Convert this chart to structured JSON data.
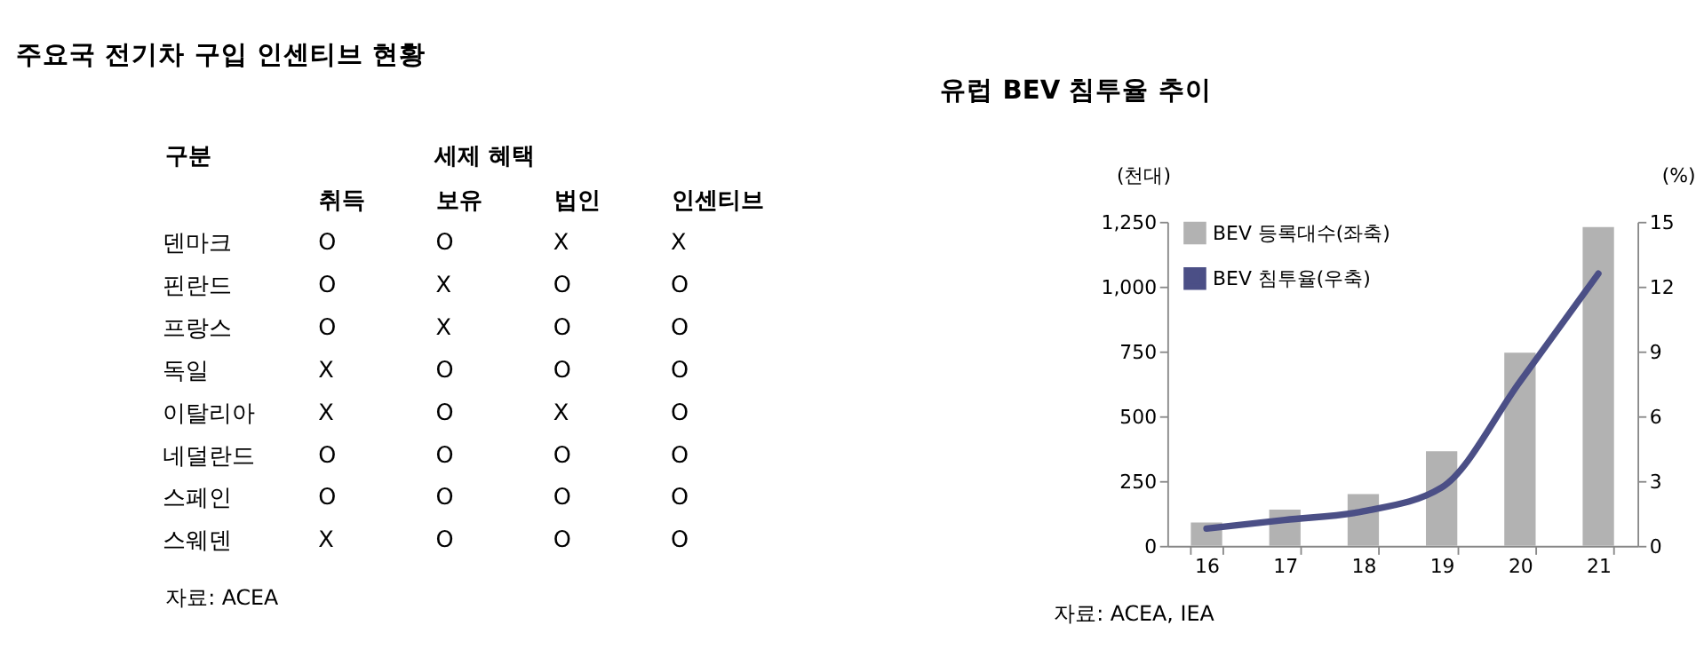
{
  "chart_data": [
    {
      "type": "other",
      "title": "주요국 전기차 구입 인센티브 현황",
      "categories": [
        "취득",
        "보유",
        "법인",
        "인센티브"
      ],
      "y_categories": [
        "덴마크",
        "핀란드",
        "프랑스",
        "독일",
        "이탈리아",
        "네덜란드",
        "스페인",
        "스웨덴"
      ],
      "cell_labels": [
        [
          "O",
          "O",
          "X",
          "X"
        ],
        [
          "O",
          "X",
          "O",
          "O"
        ],
        [
          "O",
          "X",
          "O",
          "O"
        ],
        [
          "X",
          "O",
          "O",
          "O"
        ],
        [
          "X",
          "O",
          "X",
          "O"
        ],
        [
          "O",
          "O",
          "O",
          "O"
        ],
        [
          "O",
          "O",
          "O",
          "O"
        ],
        [
          "X",
          "O",
          "O",
          "O"
        ]
      ],
      "annotations": [
        "구분",
        "세제 혜택",
        "자료: ACEA"
      ]
    },
    {
      "type": "bar",
      "title": "유럽 BEV 침투율 추이",
      "ylabel": "(천대)",
      "y2label": "(%)",
      "categories": [
        "16",
        "17",
        "18",
        "19",
        "20",
        "21"
      ],
      "series": [
        {
          "name": "BEV 등록대수(좌축)",
          "type": "bar",
          "color": "#b2b2b2",
          "values": [
            90,
            140,
            200,
            365,
            745,
            1230
          ]
        },
        {
          "name": "BEV 침투율(우축)",
          "type": "line",
          "axis": "y2",
          "color": "#4b4f86",
          "values": [
            0.8,
            1.2,
            1.6,
            2.7,
            7.6,
            12.6
          ]
        }
      ],
      "ylim": [
        0,
        1250
      ],
      "yticks": [
        0,
        250,
        500,
        750,
        {
          "value": 1000,
          "label": "1,000"
        },
        {
          "value": 1250,
          "label": "1,250"
        }
      ],
      "y2lim": [
        0,
        15
      ],
      "y2ticks": [
        0,
        3,
        6,
        9,
        12,
        15
      ],
      "legend": "top left",
      "marker": "none",
      "line_style": "solid",
      "annotations": [
        "자료: ACEA, IEA"
      ]
    }
  ]
}
